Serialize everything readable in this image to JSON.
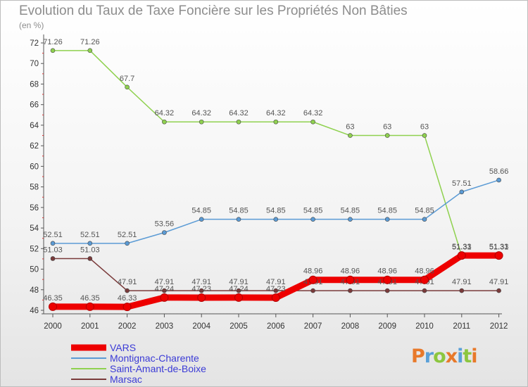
{
  "title": "Evolution du Taux de Taxe Foncière sur les Propriétés Non Bâties",
  "subtitle": "(en %)",
  "logo": {
    "text": "Proxiti",
    "colors": [
      "#e8792a",
      "#5aa0d8",
      "#8cc63f",
      "#e8792a",
      "#5aa0d8",
      "#8cc63f",
      "#e8792a"
    ]
  },
  "chart_data": {
    "type": "line",
    "title": "Evolution du Taux de Taxe Foncière sur les Propriétés Non Bâties",
    "ylabel": "(en %)",
    "xlabel": "",
    "x": [
      "2000",
      "2001",
      "2002",
      "2003",
      "2004",
      "2005",
      "2006",
      "2007",
      "2008",
      "2009",
      "2010",
      "2011",
      "2012"
    ],
    "ylim": [
      46,
      72
    ],
    "yticks": [
      46,
      48,
      50,
      52,
      54,
      56,
      58,
      60,
      62,
      64,
      66,
      68,
      70,
      72
    ],
    "grid": false,
    "legend_position": "bottom-left",
    "series": [
      {
        "name": "VARS",
        "color": "#ee0000",
        "width": 9,
        "values": [
          46.35,
          46.35,
          46.33,
          47.24,
          47.23,
          47.24,
          47.23,
          48.96,
          48.96,
          48.96,
          48.96,
          51.33,
          51.33
        ],
        "labels": [
          "46.35",
          "46.35",
          "46.33",
          "47.24",
          "47.23",
          "47.24",
          "47.23",
          "48.96",
          "48.96",
          "48.96",
          "48.96",
          "51.33",
          "51.33"
        ]
      },
      {
        "name": "Montignac-Charente",
        "color": "#5b9bd5",
        "width": 1.5,
        "values": [
          52.51,
          52.51,
          52.51,
          53.56,
          54.85,
          54.85,
          54.85,
          54.85,
          54.85,
          54.85,
          54.85,
          57.51,
          58.66
        ],
        "labels": [
          "52.51",
          "52.51",
          "52.51",
          "53.56",
          "54.85",
          "54.85",
          "54.85",
          "54.85",
          "54.85",
          "54.85",
          "54.85",
          "57.51",
          "58.66"
        ]
      },
      {
        "name": "Saint-Amant-de-Boixe",
        "color": "#8fd14f",
        "width": 1.5,
        "values": [
          71.26,
          71.26,
          67.7,
          64.32,
          64.32,
          64.32,
          64.32,
          64.32,
          63,
          63,
          63,
          51.31,
          51.31
        ],
        "labels": [
          "71.26",
          "71.26",
          "67.7",
          "64.32",
          "64.32",
          "64.32",
          "64.32",
          "64.32",
          "63",
          "63",
          "63",
          "51.31",
          "51.31"
        ]
      },
      {
        "name": "Marsac",
        "color": "#7a3a3a",
        "width": 1.5,
        "values": [
          51.03,
          51.03,
          47.91,
          47.91,
          47.91,
          47.91,
          47.91,
          47.91,
          47.91,
          47.91,
          47.91,
          47.91,
          47.91
        ],
        "labels": [
          "51.03",
          "51.03",
          "47.91",
          "47.91",
          "47.91",
          "47.91",
          "47.91",
          "47.91",
          "47.91",
          "47.91",
          "47.91",
          "47.91",
          "47.91"
        ]
      }
    ]
  }
}
